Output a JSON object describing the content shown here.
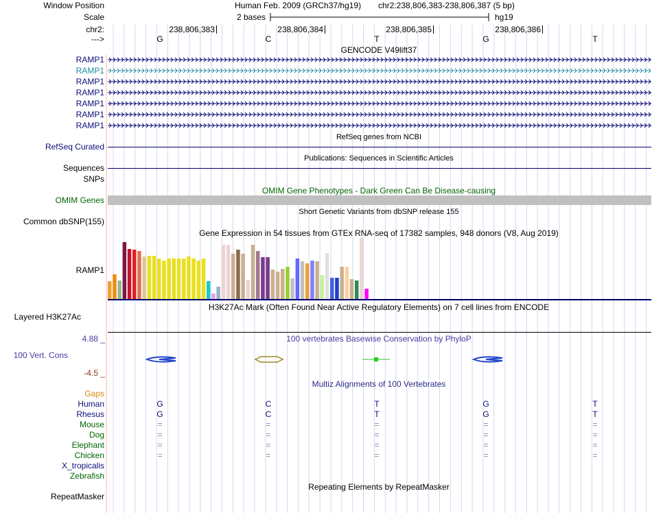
{
  "header": {
    "position_label": "Window Position",
    "scale_label": "Scale",
    "chrom_label": "chr2:",
    "strand_label": "--->",
    "assembly": "Human Feb. 2009 (GRCh37/hg19)",
    "range": "chr2:238,806,383-238,806,387 (5 bp)",
    "scale_text": "2 bases",
    "db": "hg19",
    "ticks": [
      "238,806,383",
      "238,806,384",
      "238,806,385",
      "238,806,386"
    ],
    "bases": [
      "G",
      "C",
      "T",
      "G",
      "T"
    ]
  },
  "gencode": {
    "title": "GENCODE V49lift37",
    "genes": [
      "RAMP1",
      "RAMP1",
      "RAMP1",
      "RAMP1",
      "RAMP1",
      "RAMP1",
      "RAMP1"
    ]
  },
  "refseq": {
    "title": "RefSeq genes from NCBI",
    "label": "RefSeq Curated"
  },
  "pubs": {
    "title": "Publications: Sequences in Scientific Articles",
    "label": "Sequences"
  },
  "snps": {
    "label": "SNPs"
  },
  "omim": {
    "title": "OMIM Gene Phenotypes - Dark Green Can Be Disease-causing",
    "label": "OMIM Genes"
  },
  "dbsnp": {
    "title": "Short Genetic Variants from dbSNP release 155",
    "label": "Common dbSNP(155)"
  },
  "gtex": {
    "title": "Gene Expression in 54 tissues from GTEx RNA-seq of 17382 samples, 948 donors (V8, Aug 2019)",
    "label": "RAMP1"
  },
  "h3k27ac": {
    "title": "H3K27Ac Mark (Often Found Near Active Regulatory Elements) on 7 cell lines from ENCODE",
    "label": "Layered H3K27Ac"
  },
  "cons": {
    "title": "100 vertebrates Basewise Conservation by PhyloP",
    "label": "100 Vert. Cons",
    "max": "4.88 _",
    "min": "-4.5 _"
  },
  "multiz": {
    "title": "Multiz Alignments of 100 Vertebrates",
    "gaps_label": "Gaps",
    "species": [
      {
        "name": "Human",
        "bases": [
          "G",
          "C",
          "T",
          "G",
          "T"
        ]
      },
      {
        "name": "Rhesus",
        "bases": [
          "G",
          "C",
          "T",
          "G",
          "T"
        ]
      },
      {
        "name": "Mouse",
        "bases": [
          "=",
          "=",
          "=",
          "=",
          "="
        ]
      },
      {
        "name": "Dog",
        "bases": [
          "=",
          "=",
          "=",
          "=",
          "="
        ]
      },
      {
        "name": "Elephant",
        "bases": [
          "=",
          "=",
          "=",
          "=",
          "="
        ]
      },
      {
        "name": "Chicken",
        "bases": [
          "=",
          "=",
          "=",
          "=",
          "="
        ]
      },
      {
        "name": "X_tropicalis",
        "bases": [
          "",
          "",
          "",
          "",
          ""
        ]
      },
      {
        "name": "Zebrafish",
        "bases": [
          "",
          "",
          "",
          "",
          ""
        ]
      }
    ]
  },
  "repeatmasker": {
    "title": "Repeating Elements by RepeatMasker",
    "label": "RepeatMasker"
  },
  "colors": {
    "gene_navy": "#0c0c78",
    "gene_teal": "#1e8ca0",
    "omim_gray": "#c0c0c0",
    "track_red_border": "#ffaaaa"
  }
}
